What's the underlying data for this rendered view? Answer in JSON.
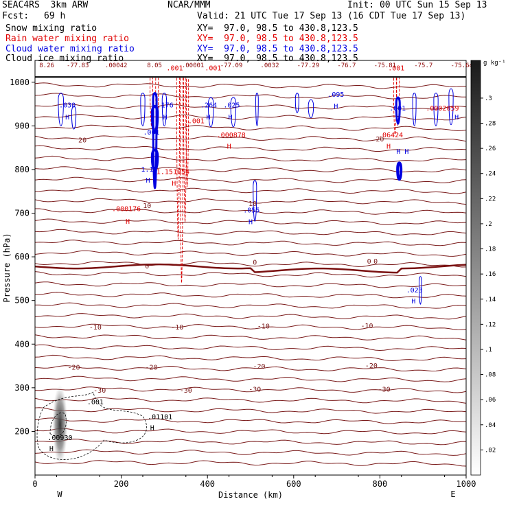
{
  "header": {
    "model": "SEAC4RS  3km ARW",
    "org": "NCAR/MMM",
    "init": "Init: 00 UTC Sun 15 Sep 13",
    "fcst_label": "Fcst:",
    "fcst_value": "69 h",
    "valid": "Valid: 21 UTC Tue 17 Sep 13 (16 CDT Tue 17 Sep 13)",
    "fields": [
      {
        "name": "Snow mixing ratio",
        "xy": "XY=  97.0, 98.5 to 430.8,123.5",
        "color": "#000000"
      },
      {
        "name": "Rain water mixing ratio",
        "xy": "XY=  97.0, 98.5 to 430.8,123.5",
        "color": "#e00000"
      },
      {
        "name": "Cloud water mixing ratio",
        "xy": "XY=  97.0, 98.5 to 430.8,123.5",
        "color": "#0000e0"
      },
      {
        "name": "Cloud ice mixing ratio",
        "xy": "XY=  97.0, 98.5 to 430.8,123.5",
        "color": "#000000"
      }
    ]
  },
  "colorbar": {
    "unit": "g kg⁻¹",
    "ticks": [
      ".3",
      ".28",
      ".26",
      ".24",
      ".22",
      ".2",
      ".18",
      ".16",
      ".14",
      ".12",
      ".1",
      ".08",
      ".06",
      ".04",
      ".02"
    ]
  },
  "chart_data": {
    "type": "cross-section contour",
    "xlabel": "Distance (km)",
    "ylabel": "Pressure (hPa)",
    "xlim": [
      0,
      1000
    ],
    "ylim": [
      1050,
      100
    ],
    "x_ticks": [
      "0",
      "200",
      "400",
      "600",
      "800",
      "1000"
    ],
    "y_ticks": [
      "200",
      "300",
      "400",
      "500",
      "600",
      "700",
      "800",
      "900",
      "1000"
    ],
    "y_tick_values": [
      200,
      300,
      400,
      500,
      600,
      700,
      800,
      900,
      1000
    ],
    "left_end": "W",
    "right_end": "E",
    "top_values": [
      "8.26",
      "-77.83",
      ".00042",
      "8.05",
      ".00001",
      "-77.09",
      ".0032",
      "-77.29",
      "-76.7",
      "-75.81",
      "-75.7",
      "-75.64"
    ],
    "isotherm_labels": [
      {
        "text": "-30",
        "x": 150,
        "p": 295
      },
      {
        "text": "-30",
        "x": 350,
        "p": 295
      },
      {
        "text": "-30",
        "x": 510,
        "p": 297
      },
      {
        "text": "-30",
        "x": 810,
        "p": 297
      },
      {
        "text": "-20",
        "x": 90,
        "p": 348
      },
      {
        "text": "-20",
        "x": 270,
        "p": 348
      },
      {
        "text": "-20",
        "x": 520,
        "p": 350
      },
      {
        "text": "-20",
        "x": 780,
        "p": 352
      },
      {
        "text": "-10",
        "x": 140,
        "p": 440
      },
      {
        "text": "-10",
        "x": 330,
        "p": 440
      },
      {
        "text": "-10",
        "x": 530,
        "p": 442
      },
      {
        "text": "-10",
        "x": 770,
        "p": 443
      },
      {
        "text": "0",
        "x": 260,
        "p": 580
      },
      {
        "text": "0",
        "x": 510,
        "p": 588
      },
      {
        "text": "0",
        "x": 775,
        "p": 591
      },
      {
        "text": "0",
        "x": 790,
        "p": 591
      },
      {
        "text": "10",
        "x": 260,
        "p": 718
      },
      {
        "text": "10",
        "x": 505,
        "p": 723
      },
      {
        "text": "20",
        "x": 110,
        "p": 868
      },
      {
        "text": "20",
        "x": 800,
        "p": 871
      }
    ],
    "rain_labels": [
      {
        "text": "H",
        "x": 215,
        "p": 676
      },
      {
        "text": ".000176",
        "x": 212,
        "p": 705
      },
      {
        "text": "H",
        "x": 322,
        "p": 763
      },
      {
        "text": "1.151054",
        "x": 320,
        "p": 790
      },
      {
        "text": "H",
        "x": 450,
        "p": 848
      },
      {
        "text": ".000878",
        "x": 455,
        "p": 874
      },
      {
        "text": "H",
        "x": 820,
        "p": 848
      },
      {
        "text": ".06424",
        "x": 825,
        "p": 874
      },
      {
        "text": ".001",
        "x": 374,
        "p": 906
      },
      {
        "text": ".0002059",
        "x": 945,
        "p": 935
      },
      {
        "text": ".001",
        "x": 324,
        "p": 1027
      },
      {
        "text": ".001",
        "x": 413,
        "p": 1027
      },
      {
        "text": ".001",
        "x": 838,
        "p": 1027
      }
    ],
    "cloud_labels": [
      {
        "text": "H",
        "x": 75,
        "p": 915
      },
      {
        "text": ".030",
        "x": 75,
        "p": 942
      },
      {
        "text": "H",
        "x": 262,
        "p": 770
      },
      {
        "text": "1.18",
        "x": 265,
        "p": 795
      },
      {
        "text": ".001",
        "x": 270,
        "p": 880
      },
      {
        "text": "H",
        "x": 302,
        "p": 915
      },
      {
        "text": ".176",
        "x": 302,
        "p": 942
      },
      {
        "text": "H",
        "x": 402,
        "p": 915
      },
      {
        "text": ".264",
        "x": 403,
        "p": 942
      },
      {
        "text": "H",
        "x": 453,
        "p": 915
      },
      {
        "text": ".025",
        "x": 456,
        "p": 942
      },
      {
        "text": "H",
        "x": 500,
        "p": 675
      },
      {
        "text": ".055",
        "x": 502,
        "p": 702
      },
      {
        "text": "H",
        "x": 698,
        "p": 940
      },
      {
        "text": ".095",
        "x": 698,
        "p": 967
      },
      {
        "text": "H",
        "x": 843,
        "p": 836
      },
      {
        "text": "H",
        "x": 862,
        "p": 836
      },
      {
        "text": ".001",
        "x": 841,
        "p": 935
      },
      {
        "text": "H",
        "x": 978,
        "p": 915
      },
      {
        "text": "H",
        "x": 878,
        "p": 493
      },
      {
        "text": ".023",
        "x": 880,
        "p": 518
      }
    ],
    "snow_labels": [
      {
        "text": "H",
        "x": 38,
        "p": 155
      },
      {
        "text": ".00930",
        "x": 58,
        "p": 180
      },
      {
        "text": "H",
        "x": 272,
        "p": 203
      },
      {
        "text": ".01101",
        "x": 290,
        "p": 228
      },
      {
        "text": ".001",
        "x": 140,
        "p": 262
      }
    ]
  }
}
